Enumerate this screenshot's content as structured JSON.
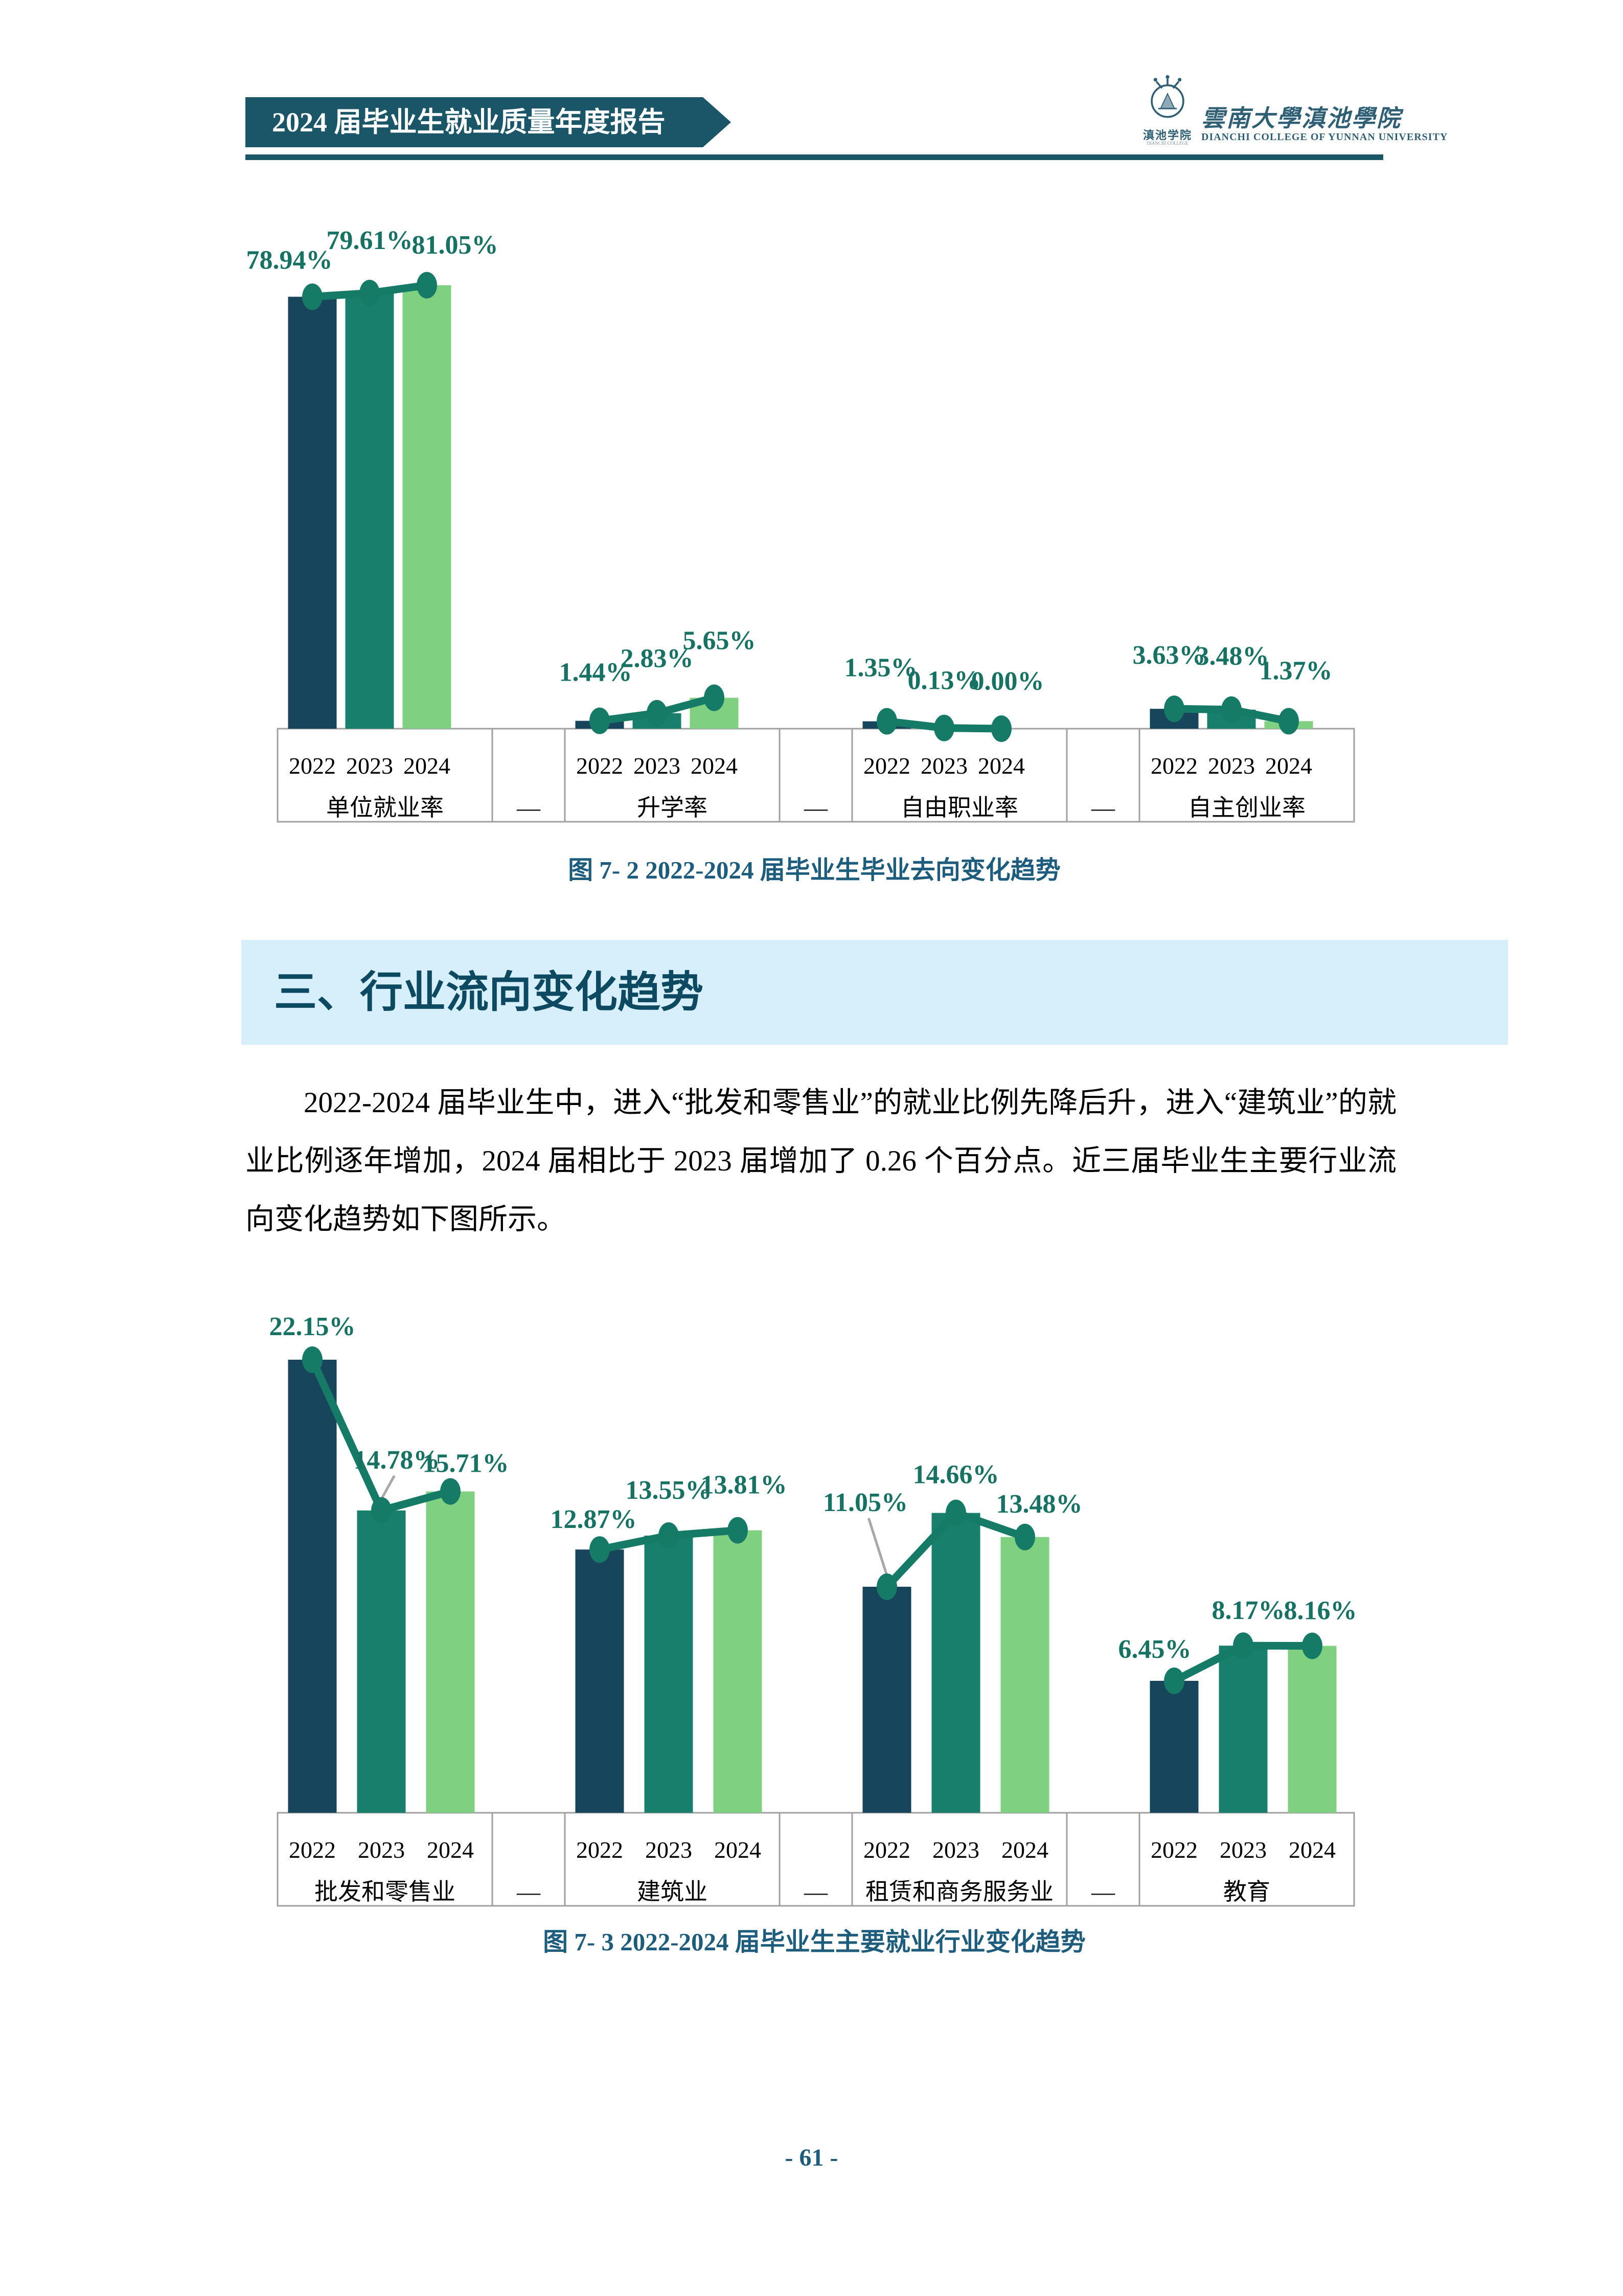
{
  "page": {
    "number": "- 61 -"
  },
  "header": {
    "banner_title": "2024 届毕业生就业质量年度报告",
    "logo": {
      "seal_cn": "滇池学院",
      "seal_en": "DIANCHI COLLEGE",
      "cn_name": "雲南大學滇池學院",
      "en_name": "DIANCHI COLLEGE OF YUNNAN UNIVERSITY"
    }
  },
  "captions": [
    "图 7- 2 2022-2024 届毕业生毕业去向变化趋势",
    "图 7- 3 2022-2024 届毕业生主要就业行业变化趋势"
  ],
  "section_heading": "三、行业流向变化趋势",
  "paragraph": "2022-2024 届毕业生中，进入“批发和零售业”的就业比例先降后升，进入“建筑业”的就业比例逐年增加，2024 届相比于 2023 届增加了 0.26 个百分点。近三届毕业生主要行业流向变化趋势如下图所示。",
  "chart_data": [
    {
      "type": "bar-line-combo",
      "title": "图 7- 2 2022-2024 届毕业生毕业去向变化趋势",
      "years": [
        "2022",
        "2023",
        "2024"
      ],
      "categories": [
        "单位就业率",
        "升学率",
        "自由职业率",
        "自主创业率"
      ],
      "separator": "—",
      "unit": "%",
      "grid": false,
      "legend": false,
      "series": [
        {
          "category": "单位就业率",
          "values": [
            78.94,
            79.61,
            81.05
          ],
          "labels": [
            "78.94%",
            "79.61%",
            "81.05%"
          ]
        },
        {
          "category": "升学率",
          "values": [
            1.44,
            2.83,
            5.65
          ],
          "labels": [
            "1.44%",
            "2.83%",
            "5.65%"
          ]
        },
        {
          "category": "自由职业率",
          "values": [
            1.35,
            0.13,
            0.0
          ],
          "labels": [
            "1.35%",
            "0.13%",
            "0.00%"
          ]
        },
        {
          "category": "自主创业率",
          "values": [
            3.63,
            3.48,
            1.37
          ],
          "labels": [
            "3.63%",
            "3.48%",
            "1.37%"
          ]
        }
      ]
    },
    {
      "type": "bar-line-combo",
      "title": "图 7- 3 2022-2024 届毕业生主要就业行业变化趋势",
      "years": [
        "2022",
        "2023",
        "2024"
      ],
      "categories": [
        "批发和零售业",
        "建筑业",
        "租赁和商务服务业",
        "教育"
      ],
      "separator": "—",
      "unit": "%",
      "grid": false,
      "legend": false,
      "series": [
        {
          "category": "批发和零售业",
          "values": [
            22.15,
            14.78,
            15.71
          ],
          "labels": [
            "22.15%",
            "14.78%",
            "15.71%"
          ]
        },
        {
          "category": "建筑业",
          "values": [
            12.87,
            13.55,
            13.81
          ],
          "labels": [
            "12.87%",
            "13.55%",
            "13.81%"
          ]
        },
        {
          "category": "租赁和商务服务业",
          "values": [
            11.05,
            14.66,
            13.48
          ],
          "labels": [
            "11.05%",
            "14.66%",
            "13.48%"
          ]
        },
        {
          "category": "教育",
          "values": [
            6.45,
            8.17,
            8.16
          ],
          "labels": [
            "6.45%",
            "8.17%",
            "8.16%"
          ]
        }
      ]
    }
  ],
  "colors": {
    "page_bg": "#ffffff",
    "banner_bg": "#1a5568",
    "banner_text": "#ffffff",
    "chevron_1": "#25aede",
    "chevron_2": "#5ec8ef",
    "chevron_3": "#aadff4",
    "logo": "#2e5f75",
    "bar_2022": "#16455c",
    "bar_2023": "#177f6b",
    "bar_2024": "#7fd080",
    "trend_line": "#157a66",
    "data_label": "#177263",
    "axis_text": "#000000",
    "table_border": "#a0a0a0",
    "leader_line": "#a8a8a8",
    "caption": "#1d5c7c",
    "heading_bg": "#d6effa",
    "heading_text": "#0d4a62"
  }
}
